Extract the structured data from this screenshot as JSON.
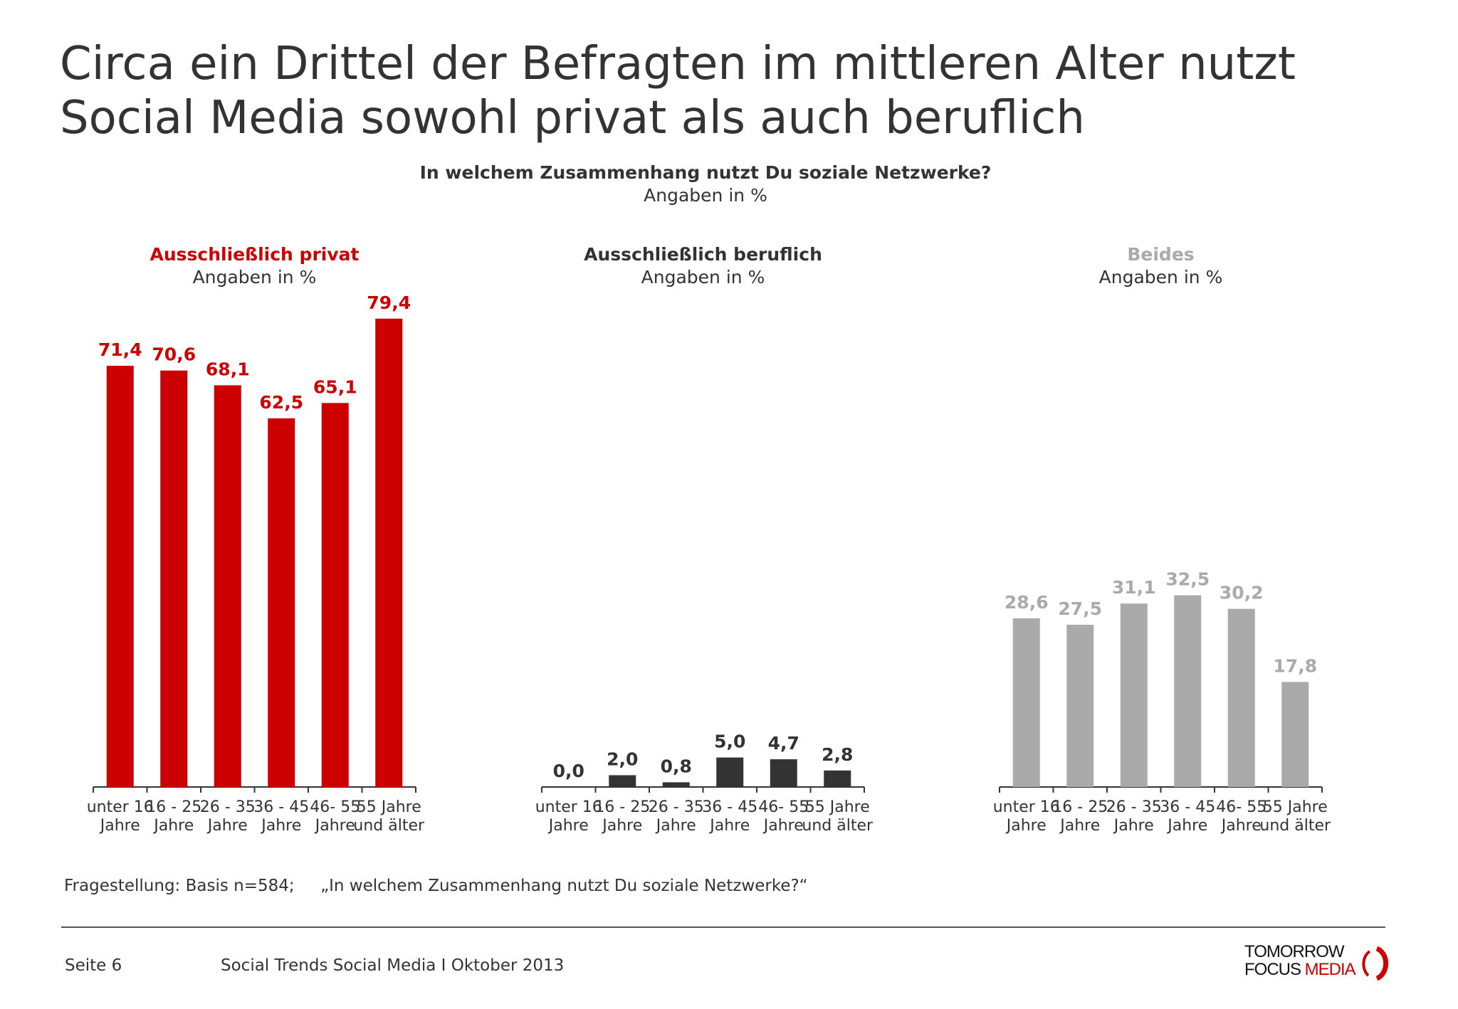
{
  "title_lines": [
    "Circa ein Drittel der Befragten im mittleren Alter nutzt",
    "Social Media sowohl privat als auch beruflich"
  ],
  "question": "In welchem Zusammenhang nutzt Du soziale Netzwerke?",
  "question_unit": "Angaben in %",
  "chart_data": [
    {
      "type": "bar",
      "title": "Ausschließlich privat",
      "subtitle": "Angaben in %",
      "color": "#cc0000",
      "categories": [
        "unter 16\nJahre",
        "16 - 25\nJahre",
        "26 - 35\nJahre",
        "36 - 45\nJahre",
        "46- 55\nJahre",
        "55 Jahre\nund älter"
      ],
      "values": [
        71.4,
        70.6,
        68.1,
        62.5,
        65.1,
        79.4
      ],
      "labels": [
        "71,4",
        "70,6",
        "68,1",
        "62,5",
        "65,1",
        "79,4"
      ]
    },
    {
      "type": "bar",
      "title": "Ausschließlich beruflich",
      "subtitle": "Angaben in %",
      "color": "#333333",
      "categories": [
        "unter 16\nJahre",
        "16 - 25\nJahre",
        "26 - 35\nJahre",
        "36 - 45\nJahre",
        "46- 55\nJahre",
        "55 Jahre\nund älter"
      ],
      "values": [
        0.0,
        2.0,
        0.8,
        5.0,
        4.7,
        2.8
      ],
      "labels": [
        "0,0",
        "2,0",
        "0,8",
        "5,0",
        "4,7",
        "2,8"
      ]
    },
    {
      "type": "bar",
      "title": "Beides",
      "subtitle": "Angaben in %",
      "color": "#aaaaaa",
      "categories": [
        "unter 16\nJahre",
        "16 - 25\nJahre",
        "26 - 35\nJahre",
        "36 - 45\nJahre",
        "46- 55\nJahre",
        "55 Jahre\nund älter"
      ],
      "values": [
        28.6,
        27.5,
        31.1,
        32.5,
        30.2,
        17.8
      ],
      "labels": [
        "28,6",
        "27,5",
        "31,1",
        "32,5",
        "30,2",
        "17,8"
      ]
    }
  ],
  "footnote": "Fragestellung: Basis n=584;     „In welchem Zusammenhang nutzt Du soziale Netzwerke?“",
  "footer": {
    "page": "Seite 6",
    "source": "Social Trends Social Media I Oktober 2013"
  },
  "logo": {
    "line1": "TOMORROW",
    "line2a": "FOCUS ",
    "line2b": "MEDIA"
  }
}
